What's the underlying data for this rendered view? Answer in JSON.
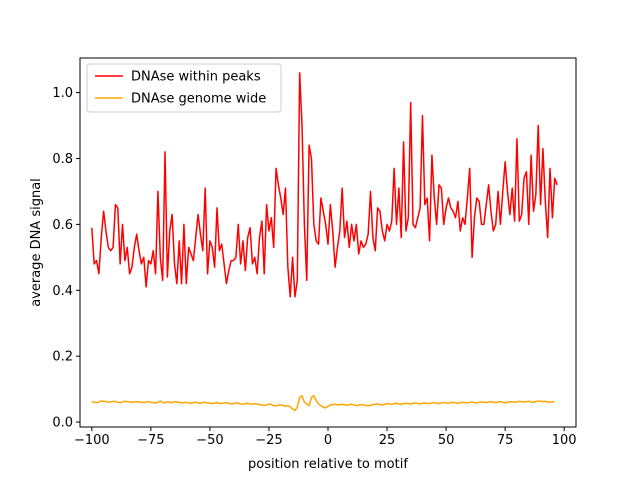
{
  "chart_data": {
    "type": "line",
    "title": "",
    "xlabel": "position relative to motif",
    "ylabel": "average DNA signal",
    "xlim": [
      -105,
      105
    ],
    "ylim": [
      -0.015,
      1.105
    ],
    "xticks": [
      -100,
      -75,
      -50,
      -25,
      0,
      25,
      50,
      75,
      100
    ],
    "xtick_labels": [
      "−100",
      "−75",
      "−50",
      "−25",
      "0",
      "25",
      "50",
      "75",
      "100"
    ],
    "yticks": [
      0.0,
      0.2,
      0.4,
      0.6,
      0.8,
      1.0
    ],
    "ytick_labels": [
      "0.0",
      "0.2",
      "0.4",
      "0.6",
      "0.8",
      "1.0"
    ],
    "grid": false,
    "legend_position": "upper-left",
    "x_start": -100,
    "x_step": 1,
    "series": [
      {
        "name": "DNAse within peaks",
        "color": "#ff0000",
        "values": [
          0.59,
          0.48,
          0.49,
          0.45,
          0.56,
          0.64,
          0.58,
          0.53,
          0.52,
          0.53,
          0.66,
          0.65,
          0.48,
          0.6,
          0.49,
          0.53,
          0.45,
          0.47,
          0.53,
          0.57,
          0.52,
          0.48,
          0.5,
          0.41,
          0.49,
          0.48,
          0.52,
          0.45,
          0.7,
          0.5,
          0.43,
          0.82,
          0.44,
          0.58,
          0.63,
          0.48,
          0.42,
          0.55,
          0.42,
          0.6,
          0.42,
          0.53,
          0.51,
          0.49,
          0.56,
          0.63,
          0.57,
          0.52,
          0.71,
          0.45,
          0.55,
          0.53,
          0.47,
          0.65,
          0.52,
          0.54,
          0.48,
          0.42,
          0.46,
          0.49,
          0.49,
          0.5,
          0.6,
          0.48,
          0.55,
          0.46,
          0.56,
          0.59,
          0.48,
          0.5,
          0.45,
          0.56,
          0.61,
          0.45,
          0.66,
          0.58,
          0.62,
          0.53,
          0.77,
          0.72,
          0.68,
          0.63,
          0.71,
          0.47,
          0.38,
          0.5,
          0.38,
          0.43,
          1.06,
          0.9,
          0.6,
          0.43,
          0.84,
          0.8,
          0.6,
          0.55,
          0.54,
          0.68,
          0.64,
          0.6,
          0.54,
          0.66,
          0.58,
          0.47,
          0.53,
          0.58,
          0.71,
          0.56,
          0.61,
          0.53,
          0.6,
          0.55,
          0.6,
          0.51,
          0.55,
          0.53,
          0.54,
          0.57,
          0.7,
          0.56,
          0.52,
          0.65,
          0.64,
          0.58,
          0.55,
          0.6,
          0.58,
          0.61,
          0.77,
          0.6,
          0.71,
          0.56,
          0.85,
          0.58,
          0.62,
          0.97,
          0.6,
          0.59,
          0.62,
          0.65,
          0.93,
          0.66,
          0.68,
          0.55,
          0.81,
          0.68,
          0.6,
          0.72,
          0.71,
          0.6,
          0.65,
          0.68,
          0.65,
          0.64,
          0.62,
          0.67,
          0.58,
          0.62,
          0.6,
          0.68,
          0.77,
          0.5,
          0.62,
          0.68,
          0.67,
          0.6,
          0.6,
          0.66,
          0.72,
          0.64,
          0.58,
          0.6,
          0.7,
          0.6,
          0.7,
          0.79,
          0.7,
          0.63,
          0.71,
          0.61,
          0.86,
          0.61,
          0.63,
          0.74,
          0.76,
          0.6,
          0.81,
          0.64,
          0.69,
          0.9,
          0.66,
          0.83,
          0.67,
          0.56,
          0.77,
          0.62,
          0.74,
          0.72
        ]
      },
      {
        "name": "DNAse genome wide",
        "color": "#ffa500",
        "values": [
          0.062,
          0.06,
          0.059,
          0.061,
          0.064,
          0.063,
          0.062,
          0.06,
          0.061,
          0.063,
          0.062,
          0.06,
          0.059,
          0.061,
          0.063,
          0.062,
          0.061,
          0.06,
          0.061,
          0.062,
          0.061,
          0.06,
          0.059,
          0.061,
          0.062,
          0.06,
          0.059,
          0.058,
          0.06,
          0.064,
          0.06,
          0.058,
          0.061,
          0.06,
          0.059,
          0.062,
          0.061,
          0.06,
          0.058,
          0.059,
          0.06,
          0.058,
          0.057,
          0.059,
          0.061,
          0.058,
          0.057,
          0.059,
          0.06,
          0.058,
          0.057,
          0.056,
          0.058,
          0.059,
          0.057,
          0.056,
          0.058,
          0.059,
          0.057,
          0.055,
          0.056,
          0.058,
          0.057,
          0.055,
          0.054,
          0.056,
          0.057,
          0.055,
          0.054,
          0.056,
          0.055,
          0.053,
          0.052,
          0.05,
          0.052,
          0.055,
          0.053,
          0.05,
          0.049,
          0.051,
          0.052,
          0.05,
          0.048,
          0.05,
          0.046,
          0.04,
          0.035,
          0.045,
          0.075,
          0.08,
          0.06,
          0.055,
          0.05,
          0.075,
          0.08,
          0.065,
          0.055,
          0.05,
          0.045,
          0.043,
          0.048,
          0.052,
          0.053,
          0.054,
          0.052,
          0.053,
          0.054,
          0.052,
          0.051,
          0.053,
          0.054,
          0.052,
          0.05,
          0.051,
          0.053,
          0.052,
          0.05,
          0.049,
          0.051,
          0.053,
          0.054,
          0.055,
          0.053,
          0.052,
          0.054,
          0.056,
          0.055,
          0.054,
          0.056,
          0.057,
          0.055,
          0.054,
          0.056,
          0.057,
          0.056,
          0.055,
          0.057,
          0.058,
          0.056,
          0.055,
          0.057,
          0.058,
          0.057,
          0.056,
          0.058,
          0.059,
          0.057,
          0.056,
          0.058,
          0.06,
          0.058,
          0.057,
          0.059,
          0.06,
          0.058,
          0.057,
          0.059,
          0.06,
          0.059,
          0.058,
          0.06,
          0.061,
          0.059,
          0.058,
          0.06,
          0.061,
          0.06,
          0.059,
          0.061,
          0.062,
          0.06,
          0.059,
          0.061,
          0.062,
          0.06,
          0.058,
          0.06,
          0.062,
          0.061,
          0.06,
          0.061,
          0.063,
          0.062,
          0.061,
          0.062,
          0.063,
          0.061,
          0.06,
          0.062,
          0.064,
          0.063,
          0.062,
          0.063,
          0.061,
          0.06,
          0.061,
          0.062
        ]
      }
    ]
  }
}
